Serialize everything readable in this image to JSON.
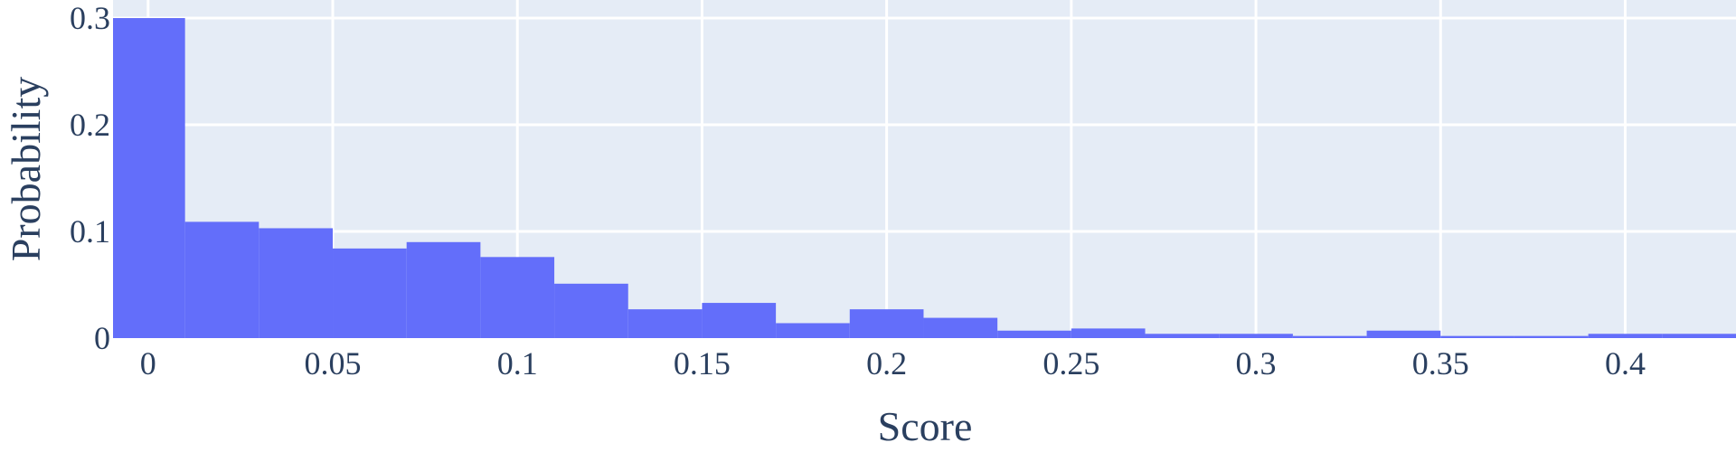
{
  "chart_data": {
    "type": "bar",
    "title": "",
    "xlabel": "Score",
    "ylabel": "Probability",
    "xlim": [
      -0.0095,
      0.43
    ],
    "ylim": [
      0,
      0.3
    ],
    "bin_width": 0.02,
    "bins": [
      {
        "start": -0.01,
        "end": 0.01,
        "value": 0.3
      },
      {
        "start": 0.01,
        "end": 0.03,
        "value": 0.109
      },
      {
        "start": 0.03,
        "end": 0.05,
        "value": 0.103
      },
      {
        "start": 0.05,
        "end": 0.07,
        "value": 0.084
      },
      {
        "start": 0.07,
        "end": 0.09,
        "value": 0.09
      },
      {
        "start": 0.09,
        "end": 0.11,
        "value": 0.076
      },
      {
        "start": 0.11,
        "end": 0.13,
        "value": 0.051
      },
      {
        "start": 0.13,
        "end": 0.15,
        "value": 0.027
      },
      {
        "start": 0.15,
        "end": 0.17,
        "value": 0.033
      },
      {
        "start": 0.17,
        "end": 0.19,
        "value": 0.014
      },
      {
        "start": 0.19,
        "end": 0.21,
        "value": 0.027
      },
      {
        "start": 0.21,
        "end": 0.23,
        "value": 0.019
      },
      {
        "start": 0.23,
        "end": 0.25,
        "value": 0.007
      },
      {
        "start": 0.25,
        "end": 0.27,
        "value": 0.009
      },
      {
        "start": 0.27,
        "end": 0.29,
        "value": 0.004
      },
      {
        "start": 0.29,
        "end": 0.31,
        "value": 0.004
      },
      {
        "start": 0.31,
        "end": 0.33,
        "value": 0.002
      },
      {
        "start": 0.33,
        "end": 0.35,
        "value": 0.007
      },
      {
        "start": 0.35,
        "end": 0.37,
        "value": 0.002
      },
      {
        "start": 0.37,
        "end": 0.39,
        "value": 0.002
      },
      {
        "start": 0.39,
        "end": 0.41,
        "value": 0.004
      },
      {
        "start": 0.41,
        "end": 0.43,
        "value": 0.004
      }
    ],
    "x_ticks": [
      {
        "value": 0,
        "label": "0"
      },
      {
        "value": 0.05,
        "label": "0.05"
      },
      {
        "value": 0.1,
        "label": "0.1"
      },
      {
        "value": 0.15,
        "label": "0.15"
      },
      {
        "value": 0.2,
        "label": "0.2"
      },
      {
        "value": 0.25,
        "label": "0.25"
      },
      {
        "value": 0.3,
        "label": "0.3"
      },
      {
        "value": 0.35,
        "label": "0.35"
      },
      {
        "value": 0.4,
        "label": "0.4"
      }
    ],
    "y_ticks": [
      {
        "value": 0,
        "label": "0"
      },
      {
        "value": 0.1,
        "label": "0.1"
      },
      {
        "value": 0.2,
        "label": "0.2"
      },
      {
        "value": 0.3,
        "label": "0.3"
      }
    ],
    "grid": true,
    "legend": "none",
    "colors": {
      "bar": "#636efa",
      "plot_background": "#e5ecf6",
      "grid": "#ffffff",
      "text": "#2a3f5f"
    }
  }
}
